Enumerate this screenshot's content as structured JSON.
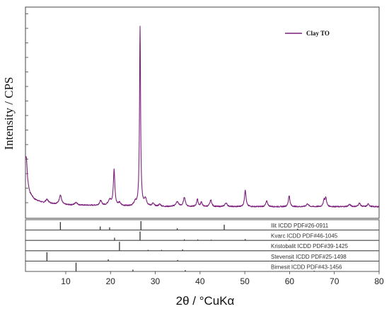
{
  "chart_data": {
    "type": "line",
    "xlabel": "2θ / °CuKα",
    "ylabel": "Intensity / CPS",
    "xlim": [
      1,
      80
    ],
    "x_ticks": [
      10,
      20,
      30,
      40,
      50,
      60,
      70,
      80
    ],
    "grid": false,
    "legend_position": "top-right",
    "series": [
      {
        "name": "Clay TO",
        "color": "#7d1f7d",
        "background": [
          [
            1,
            0.22
          ],
          [
            1.5,
            0.13
          ],
          [
            2,
            0.09
          ],
          [
            3,
            0.06
          ],
          [
            5,
            0.04
          ],
          [
            10,
            0.03
          ],
          [
            20,
            0.025
          ],
          [
            30,
            0.02
          ],
          [
            50,
            0.02
          ],
          [
            80,
            0.02
          ]
        ],
        "peaks": [
          {
            "x": 1.2,
            "h": 0.1,
            "w": 0.25
          },
          {
            "x": 5.8,
            "h": 0.02,
            "w": 0.4
          },
          {
            "x": 8.8,
            "h": 0.05,
            "w": 0.3
          },
          {
            "x": 12.3,
            "h": 0.015,
            "w": 0.3
          },
          {
            "x": 17.8,
            "h": 0.025,
            "w": 0.3
          },
          {
            "x": 19.8,
            "h": 0.03,
            "w": 0.4
          },
          {
            "x": 20.8,
            "h": 0.19,
            "w": 0.2
          },
          {
            "x": 22.0,
            "h": 0.015,
            "w": 0.3
          },
          {
            "x": 25.5,
            "h": 0.02,
            "w": 0.3
          },
          {
            "x": 26.6,
            "h": 0.96,
            "w": 0.14
          },
          {
            "x": 27.8,
            "h": 0.04,
            "w": 0.3
          },
          {
            "x": 29.5,
            "h": 0.015,
            "w": 0.3
          },
          {
            "x": 31.0,
            "h": 0.012,
            "w": 0.3
          },
          {
            "x": 34.9,
            "h": 0.025,
            "w": 0.4
          },
          {
            "x": 36.5,
            "h": 0.05,
            "w": 0.25
          },
          {
            "x": 39.4,
            "h": 0.04,
            "w": 0.2
          },
          {
            "x": 40.3,
            "h": 0.025,
            "w": 0.2
          },
          {
            "x": 42.4,
            "h": 0.035,
            "w": 0.25
          },
          {
            "x": 45.8,
            "h": 0.02,
            "w": 0.3
          },
          {
            "x": 50.1,
            "h": 0.09,
            "w": 0.2
          },
          {
            "x": 54.9,
            "h": 0.03,
            "w": 0.25
          },
          {
            "x": 59.9,
            "h": 0.06,
            "w": 0.2
          },
          {
            "x": 64.0,
            "h": 0.015,
            "w": 0.3
          },
          {
            "x": 67.7,
            "h": 0.035,
            "w": 0.2
          },
          {
            "x": 68.1,
            "h": 0.045,
            "w": 0.2
          },
          {
            "x": 73.4,
            "h": 0.012,
            "w": 0.3
          },
          {
            "x": 75.6,
            "h": 0.02,
            "w": 0.25
          },
          {
            "x": 77.6,
            "h": 0.015,
            "w": 0.25
          }
        ]
      }
    ],
    "reference_patterns": [
      {
        "label": "Ilit ICDD PDF#26-0911",
        "lines": [
          {
            "x": 8.8,
            "i": 0.9
          },
          {
            "x": 17.7,
            "i": 0.4
          },
          {
            "x": 19.8,
            "i": 0.3
          },
          {
            "x": 26.8,
            "i": 1.0
          },
          {
            "x": 34.9,
            "i": 0.2
          },
          {
            "x": 45.4,
            "i": 0.6
          },
          {
            "x": 61.8,
            "i": 0.15
          }
        ]
      },
      {
        "label": "Kvarc ICDD PDF#46-1045",
        "lines": [
          {
            "x": 20.9,
            "i": 0.3
          },
          {
            "x": 26.6,
            "i": 1.0
          },
          {
            "x": 36.5,
            "i": 0.12
          },
          {
            "x": 39.5,
            "i": 0.1
          },
          {
            "x": 42.5,
            "i": 0.08
          },
          {
            "x": 50.1,
            "i": 0.15
          },
          {
            "x": 59.9,
            "i": 0.1
          },
          {
            "x": 68.1,
            "i": 0.08
          }
        ]
      },
      {
        "label": "Kristobalit ICDD PDF#39-1425",
        "lines": [
          {
            "x": 22.0,
            "i": 1.0
          },
          {
            "x": 28.4,
            "i": 0.1
          },
          {
            "x": 31.4,
            "i": 0.1
          },
          {
            "x": 36.1,
            "i": 0.15
          }
        ]
      },
      {
        "label": "Stevensit ICDD PDF#25-1498",
        "lines": [
          {
            "x": 5.8,
            "i": 1.0
          },
          {
            "x": 19.5,
            "i": 0.2
          },
          {
            "x": 35.0,
            "i": 0.12
          },
          {
            "x": 60.5,
            "i": 0.1
          }
        ]
      },
      {
        "label": "Birnesit ICDD PDF#43-1456",
        "lines": [
          {
            "x": 12.3,
            "i": 1.0
          },
          {
            "x": 25.0,
            "i": 0.2
          },
          {
            "x": 36.7,
            "i": 0.15
          },
          {
            "x": 65.5,
            "i": 0.08
          }
        ]
      }
    ]
  }
}
